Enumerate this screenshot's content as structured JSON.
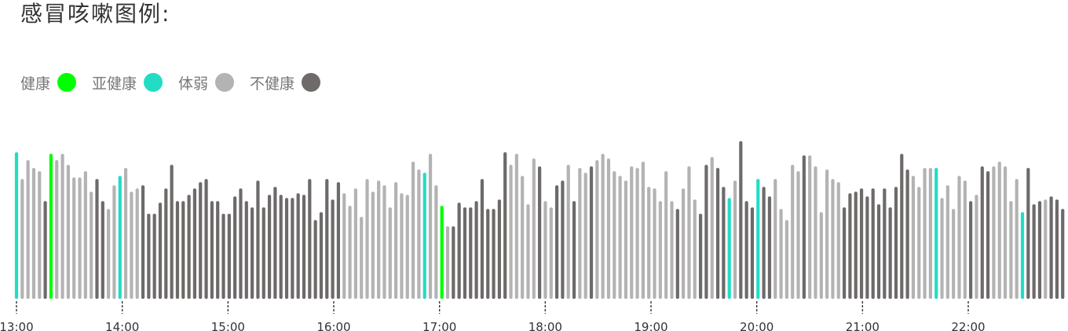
{
  "title": "感冒咳嗽图例:",
  "legend": [
    {
      "label": "健康",
      "color": "#00ff00",
      "icon": "legend-dot"
    },
    {
      "label": "亚健康",
      "color": "#22dcc6",
      "icon": "legend-dot"
    },
    {
      "label": "体弱",
      "color": "#b3b3b3",
      "icon": "legend-dot"
    },
    {
      "label": "不健康",
      "color": "#6e6a6a",
      "icon": "legend-dot"
    }
  ],
  "chart_data": {
    "type": "bar",
    "x_start": "13:00",
    "x_ticks": [
      {
        "label": "13:00",
        "minutes": 780
      },
      {
        "label": "14:00",
        "minutes": 840
      },
      {
        "label": "15:00",
        "minutes": 900
      },
      {
        "label": "16:00",
        "minutes": 960
      },
      {
        "label": "17:00",
        "minutes": 1020
      },
      {
        "label": "18:00",
        "minutes": 1080
      },
      {
        "label": "19:00",
        "minutes": 1140
      },
      {
        "label": "20:00",
        "minutes": 1200
      },
      {
        "label": "21:00",
        "minutes": 1260
      },
      {
        "label": "22:00",
        "minutes": 1320
      }
    ],
    "ylim": [
      0,
      100
    ],
    "colors": {
      "H": "#00ff00",
      "S": "#22dcc6",
      "W": "#b3b3b3",
      "U": "#6e6a6a"
    },
    "values": [
      93,
      76,
      88,
      83,
      81,
      62,
      92,
      88,
      92,
      85,
      77,
      77,
      81,
      68,
      76,
      62,
      57,
      72,
      78,
      83,
      68,
      70,
      72,
      54,
      54,
      61,
      70,
      85,
      62,
      62,
      66,
      70,
      74,
      76,
      62,
      62,
      54,
      54,
      65,
      70,
      62,
      58,
      75,
      58,
      66,
      71,
      66,
      64,
      64,
      67,
      66,
      76,
      50,
      55,
      76,
      63,
      74,
      67,
      59,
      70,
      52,
      76,
      68,
      75,
      72,
      58,
      74,
      67,
      66,
      87,
      82,
      80,
      92,
      72,
      59,
      46,
      46,
      61,
      58,
      58,
      62,
      76,
      57,
      57,
      63,
      93,
      85,
      92,
      78,
      60,
      89,
      84,
      62,
      58,
      72,
      75,
      85,
      62,
      83,
      80,
      84,
      88,
      92,
      89,
      81,
      78,
      75,
      84,
      83,
      87,
      71,
      70,
      62,
      81,
      62,
      57,
      70,
      84,
      63,
      54,
      85,
      90,
      83,
      71,
      64,
      75,
      100,
      62,
      58,
      76,
      71,
      65,
      76,
      57,
      50,
      85,
      81,
      91,
      91,
      84,
      55,
      82,
      76,
      74,
      58,
      67,
      68,
      70,
      65,
      70,
      60,
      70,
      58,
      71,
      92,
      82,
      78,
      71,
      83,
      83,
      83,
      64,
      72,
      57,
      78,
      75,
      62,
      66,
      84,
      81,
      84,
      87,
      84,
      62,
      76,
      55,
      83,
      60,
      62,
      63,
      65,
      63,
      57
    ],
    "categories_color": "SWWWWUHWWWWWWWUUWWSWWWUUUUUUUUUUUUUUUUUUUUUUUUUUUUUUUUUUUWWWWWWWWWWWWWWSWWHWUUUUUUUUUUWWWWWUWWUUWUWWUWWWWWWWWWWWWWWUWWWUUWUUSWUUUSUUWWWWWUWWWWWWUUUUUUUUUUUUWWWWSWWWWWUWUUWWWWWSUUUWUUUUUU"
  }
}
